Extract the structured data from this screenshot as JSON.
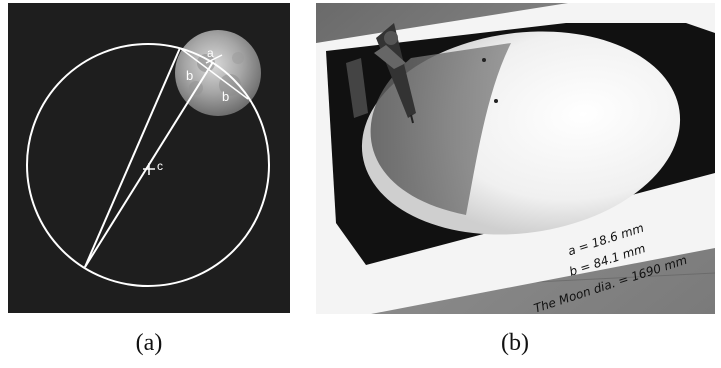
{
  "figure": {
    "panel_a": {
      "caption": "(a)",
      "labels": {
        "a": "a",
        "b_left": "b",
        "b_right": "b",
        "center": "c"
      }
    },
    "panel_b": {
      "caption": "(b)",
      "notes": {
        "line1": "a = 18.6 mm",
        "line2": "b = 84.1 mm",
        "line3": "The Moon dia. = 1690 mm"
      }
    }
  }
}
